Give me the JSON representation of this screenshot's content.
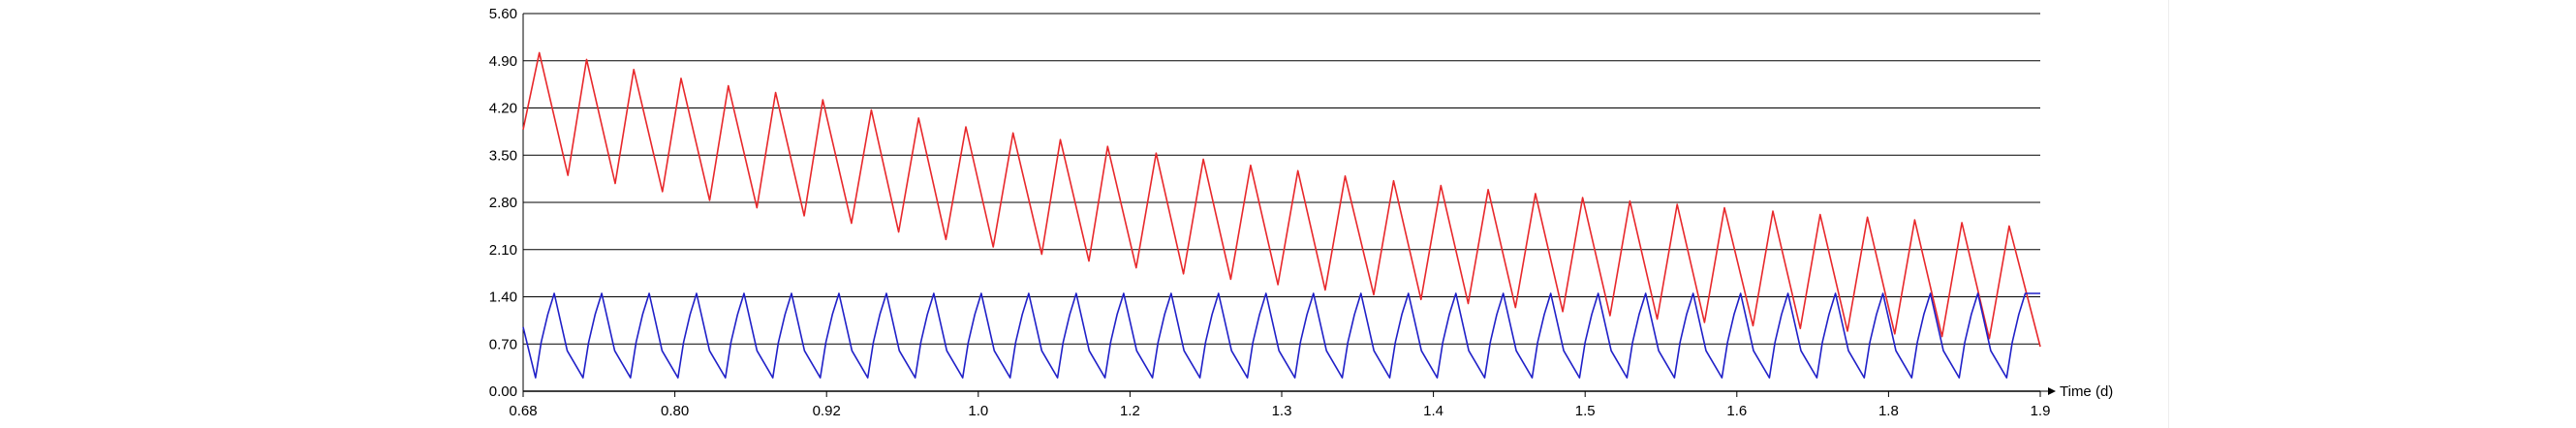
{
  "chart_data": {
    "type": "line",
    "title": "",
    "xlabel": "Time (d)",
    "ylabel": "",
    "xlim": [
      0.68,
      1.9
    ],
    "ylim": [
      0,
      5.6
    ],
    "grid": "horizontal",
    "legend": "none",
    "yticks": [
      "0.00",
      "0.70",
      "1.40",
      "2.10",
      "2.80",
      "3.50",
      "4.20",
      "4.90",
      "5.60"
    ],
    "xticks": [
      "0.68",
      "0.80",
      "0.92",
      "1.0",
      "1.2",
      "1.3",
      "1.4",
      "1.5",
      "1.6",
      "1.8",
      "1.9"
    ],
    "colors": {
      "red": "#e8282b",
      "blue": "#2020c8",
      "grid": "#000000"
    },
    "series": [
      {
        "color": "#e8282b",
        "period": 0.03816,
        "peaks": [
          [
            0.693,
            5.02
          ],
          [
            0.731,
            4.92
          ],
          [
            0.769,
            4.77
          ],
          [
            0.807,
            4.64
          ],
          [
            0.845,
            4.53
          ],
          [
            0.883,
            4.43
          ],
          [
            0.921,
            4.32
          ],
          [
            0.96,
            4.17
          ],
          [
            0.998,
            4.05
          ],
          [
            1.036,
            3.92
          ],
          [
            1.074,
            3.83
          ],
          [
            1.112,
            3.73
          ],
          [
            1.15,
            3.63
          ],
          [
            1.189,
            3.53
          ],
          [
            1.227,
            3.44
          ],
          [
            1.265,
            3.35
          ],
          [
            1.303,
            3.27
          ],
          [
            1.341,
            3.19
          ],
          [
            1.38,
            3.12
          ],
          [
            1.418,
            3.05
          ],
          [
            1.456,
            2.99
          ],
          [
            1.494,
            2.93
          ],
          [
            1.532,
            2.87
          ],
          [
            1.57,
            2.82
          ],
          [
            1.608,
            2.77
          ],
          [
            1.646,
            2.72
          ],
          [
            1.685,
            2.67
          ],
          [
            1.723,
            2.62
          ],
          [
            1.761,
            2.58
          ],
          [
            1.799,
            2.54
          ],
          [
            1.837,
            2.5
          ],
          [
            1.875,
            2.45
          ]
        ],
        "troughs": [
          [
            0.68,
            3.88
          ],
          [
            0.716,
            3.2
          ],
          [
            0.754,
            3.08
          ],
          [
            0.792,
            2.96
          ],
          [
            0.83,
            2.83
          ],
          [
            0.868,
            2.72
          ],
          [
            0.906,
            2.6
          ],
          [
            0.944,
            2.49
          ],
          [
            0.982,
            2.36
          ],
          [
            1.02,
            2.25
          ],
          [
            1.058,
            2.14
          ],
          [
            1.097,
            2.03
          ],
          [
            1.135,
            1.93
          ],
          [
            1.173,
            1.83
          ],
          [
            1.211,
            1.74
          ],
          [
            1.249,
            1.66
          ],
          [
            1.287,
            1.58
          ],
          [
            1.325,
            1.5
          ],
          [
            1.364,
            1.43
          ],
          [
            1.402,
            1.36
          ],
          [
            1.44,
            1.3
          ],
          [
            1.478,
            1.24
          ],
          [
            1.516,
            1.18
          ],
          [
            1.554,
            1.12
          ],
          [
            1.592,
            1.07
          ],
          [
            1.63,
            1.02
          ],
          [
            1.669,
            0.97
          ],
          [
            1.707,
            0.93
          ],
          [
            1.745,
            0.89
          ],
          [
            1.783,
            0.85
          ],
          [
            1.821,
            0.81
          ],
          [
            1.859,
            0.78
          ],
          [
            1.9,
            0.66
          ]
        ]
      },
      {
        "color": "#2020c8",
        "period": 0.03816,
        "peak": 1.45,
        "trough": 0.2,
        "first_peak_x": 0.705,
        "first_trough_x": 0.69,
        "start": [
          0.68,
          0.95
        ],
        "end": [
          1.9,
          1.45
        ]
      }
    ]
  }
}
